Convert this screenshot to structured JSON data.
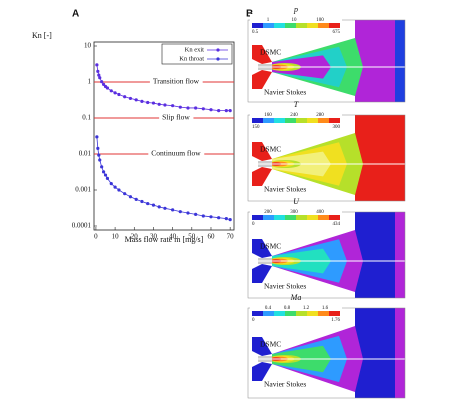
{
  "chart_data": {
    "type": "line",
    "panel_label": "A",
    "y_label": "Kn [-]",
    "x_label": "Mass flow rate ṁ [mg/s]",
    "x": [
      0.5,
      1,
      1.5,
      2,
      3,
      4,
      5,
      6,
      8,
      10,
      12,
      15,
      18,
      21,
      24,
      27,
      30,
      33,
      36,
      40,
      44,
      48,
      52,
      56,
      60,
      64,
      68,
      70
    ],
    "series": [
      {
        "name": "Kn exit",
        "color": "#5a2ee0",
        "values": [
          3,
          1.98,
          1.55,
          1.31,
          1.02,
          0.86,
          0.75,
          0.68,
          0.57,
          0.5,
          0.45,
          0.39,
          0.35,
          0.32,
          0.29,
          0.27,
          0.26,
          0.24,
          0.23,
          0.22,
          0.2,
          0.19,
          0.19,
          0.18,
          0.17,
          0.16,
          0.16,
          0.16
        ]
      },
      {
        "name": "Kn throat",
        "color": "#3b35d8",
        "values": [
          0.03,
          0.0143,
          0.0093,
          0.0068,
          0.0044,
          0.0032,
          0.0026,
          0.0021,
          0.0015,
          0.0012,
          0.001,
          0.00079,
          0.00065,
          0.00055,
          0.00048,
          0.00042,
          0.00038,
          0.00034,
          0.00031,
          0.00028,
          0.00025,
          0.00023,
          0.00021,
          0.00019,
          0.00018,
          0.00017,
          0.00016,
          0.00015
        ]
      }
    ],
    "xlim": [
      -1,
      72
    ],
    "xticks": [
      0,
      10,
      20,
      30,
      40,
      50,
      60,
      70
    ],
    "ylim": [
      0.0001,
      10
    ],
    "yticks": [
      10,
      1,
      0.1,
      0.01,
      0.001,
      0.0001
    ],
    "log_y": true,
    "legend": "top-right",
    "annotations": [
      {
        "value": 1,
        "label": "Transition flow"
      },
      {
        "value": 0.1,
        "label": "Slip flow"
      },
      {
        "value": 0.01,
        "label": "Continuum flow"
      }
    ],
    "annotation_color": "#e03535"
  },
  "panel_b": {
    "label": "B",
    "dsmc": "DSMC",
    "ns": "Navier Stokes",
    "panels": [
      {
        "symbol": "p",
        "top": [
          "1",
          "10",
          "100"
        ],
        "bottom": [
          "0.5",
          "675"
        ]
      },
      {
        "symbol": "T",
        "top": [
          "160",
          "240",
          "280"
        ],
        "bottom": [
          "150",
          "300"
        ]
      },
      {
        "symbol": "U",
        "top": [
          "200",
          "300",
          "400"
        ],
        "bottom": [
          "0",
          "434"
        ]
      },
      {
        "symbol": "Ma",
        "top": [
          "0.4",
          "0.8",
          "1.2",
          "1.6"
        ],
        "bottom": [
          "0",
          "1.76"
        ]
      }
    ]
  }
}
